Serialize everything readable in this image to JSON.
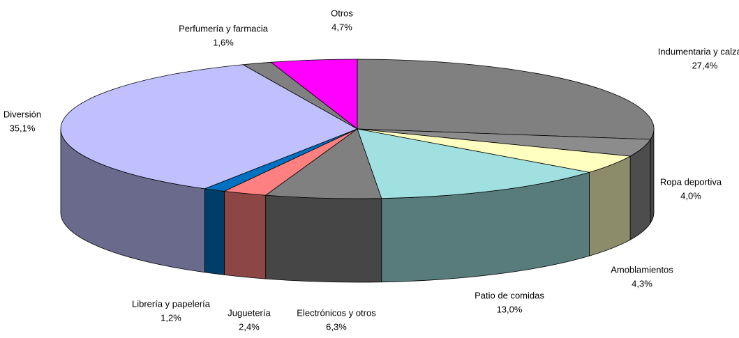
{
  "chart_data": {
    "type": "pie3d",
    "categories": [
      "Indumentaria y calzado",
      "Ropa deportiva",
      "Amoblamientos",
      "Patio de comidas",
      "Electrónicos y otros",
      "Juguetería",
      "Librería y papelería",
      "Diversión",
      "Perfumería y farmacia",
      "Otros"
    ],
    "values": [
      27.4,
      4.0,
      4.3,
      13.0,
      6.3,
      2.4,
      1.2,
      35.1,
      1.6,
      4.7
    ],
    "value_labels": [
      "27,4%",
      "4,0%",
      "4,3%",
      "13,0%",
      "6,3%",
      "2,4%",
      "1,2%",
      "35,1%",
      "1,6%",
      "4,7%"
    ],
    "colors": [
      "#808080",
      "#8c8c8c",
      "#ffffc0",
      "#a0e0e0",
      "#808080",
      "#ff8080",
      "#0070c0",
      "#c0c0ff",
      "#808080",
      "#ff00ff"
    ]
  }
}
